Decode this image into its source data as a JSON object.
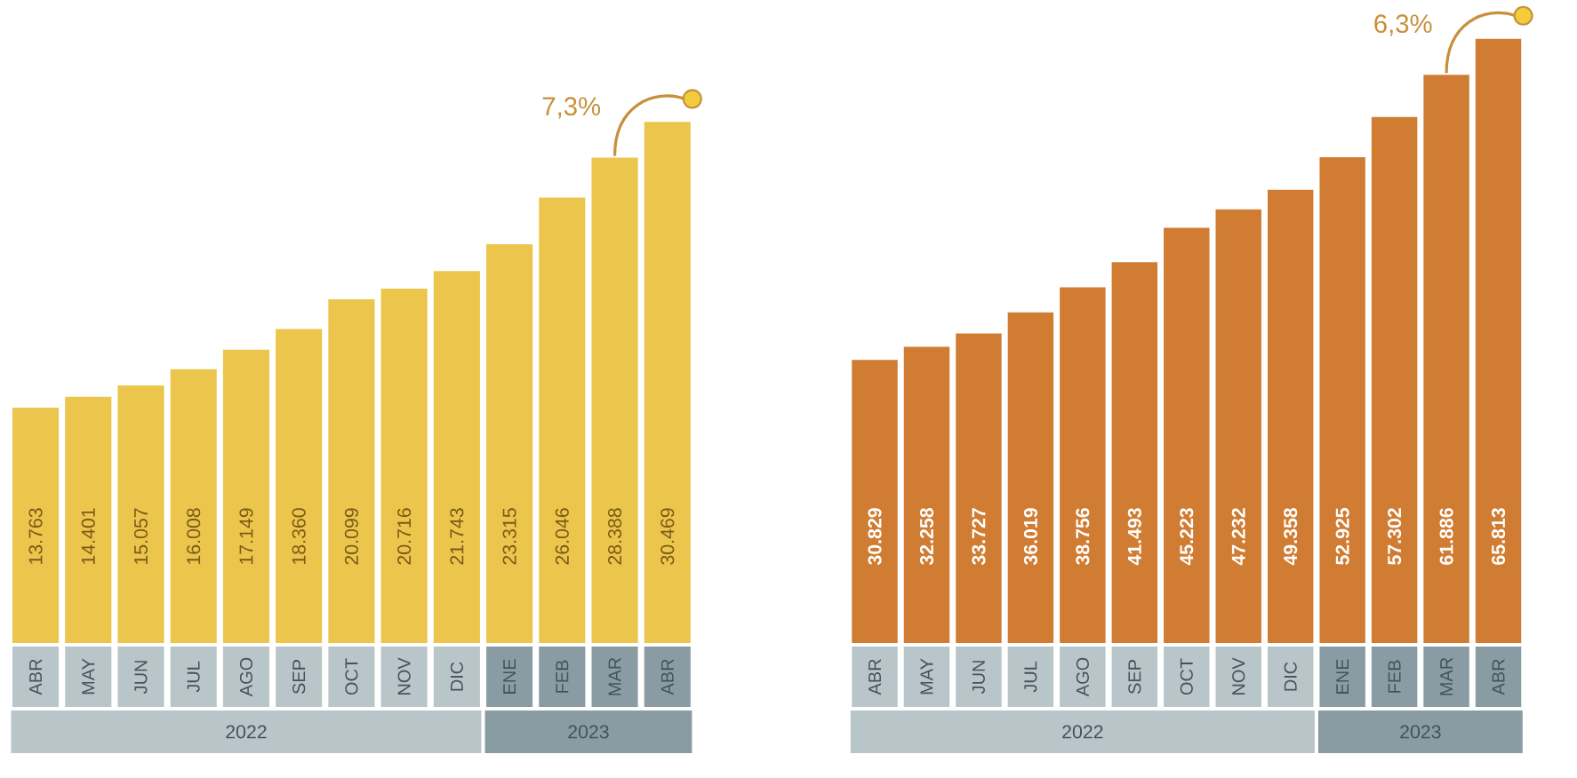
{
  "chart_data": [
    {
      "type": "bar",
      "categories": [
        "ABR",
        "MAY",
        "JUN",
        "JUL",
        "AGO",
        "SEP",
        "OCT",
        "NOV",
        "DIC",
        "ENE",
        "FEB",
        "MAR",
        "ABR"
      ],
      "values": [
        13763,
        14401,
        15057,
        16008,
        17149,
        18360,
        20099,
        20716,
        21743,
        23315,
        26046,
        28388,
        30469
      ],
      "value_labels": [
        "13.763",
        "14.401",
        "15.057",
        "16.008",
        "17.149",
        "18.360",
        "20.099",
        "20.716",
        "21.743",
        "23.315",
        "26.046",
        "28.388",
        "30.469"
      ],
      "color": "#ecc54c",
      "tick_labels": "x",
      "annotations": [
        "7,3%",
        "2022",
        "2023"
      ]
    },
    {
      "type": "bar",
      "categories": [
        "ABR",
        "MAY",
        "JUN",
        "JUL",
        "AGO",
        "SEP",
        "OCT",
        "NOV",
        "DIC",
        "ENE",
        "FEB",
        "MAR",
        "ABR"
      ],
      "values": [
        30829,
        32258,
        33727,
        36019,
        38756,
        41493,
        45223,
        47232,
        49358,
        52925,
        57302,
        61886,
        65813
      ],
      "value_labels": [
        "30.829",
        "32.258",
        "33.727",
        "36.019",
        "38.756",
        "41.493",
        "45.223",
        "47.232",
        "49.358",
        "52.925",
        "57.302",
        "61.886",
        "65.813"
      ],
      "color": "#d07c32",
      "tick_labels": "x",
      "annotations": [
        "6,3%",
        "2022",
        "2023"
      ]
    }
  ]
}
